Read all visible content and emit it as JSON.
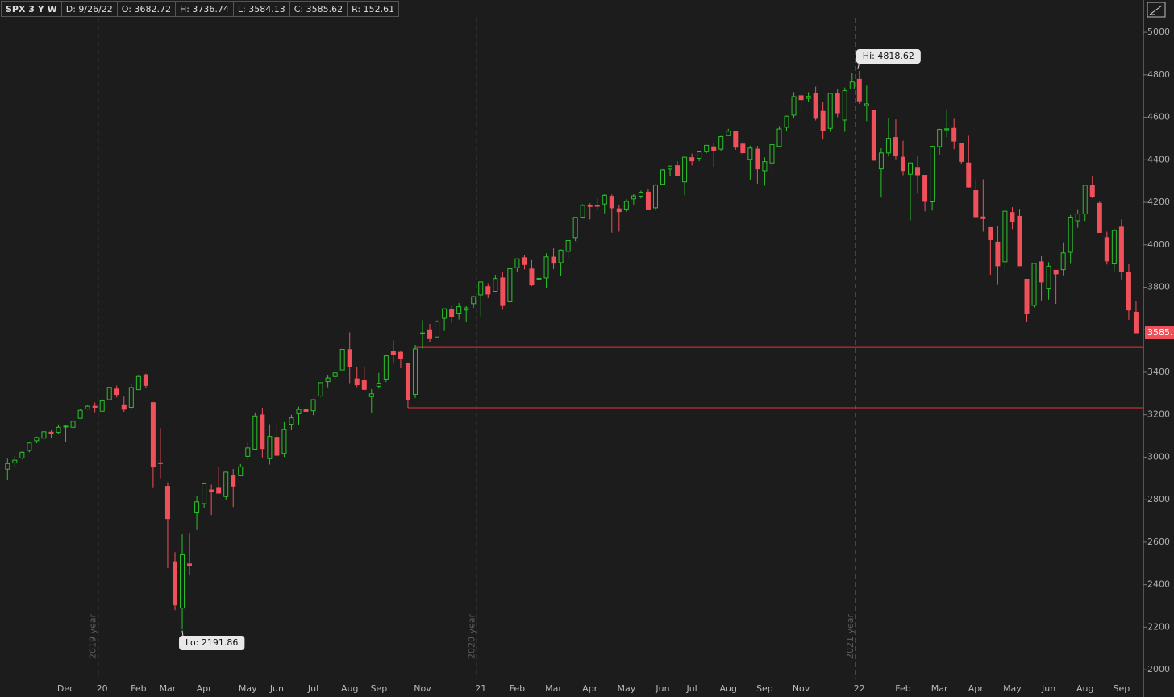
{
  "header": {
    "symbol": "SPX 3 Y W",
    "fields": [
      "D: 9/26/22",
      "O: 3682.72",
      "H: 3736.74",
      "L: 3584.13",
      "C: 3585.62",
      "R: 152.61"
    ]
  },
  "chart_data": {
    "type": "candlestick",
    "categories": [
      null,
      null,
      null,
      null,
      null,
      null,
      null,
      null,
      "Dec",
      null,
      null,
      null,
      null,
      "20",
      null,
      null,
      null,
      null,
      "Feb",
      null,
      null,
      null,
      "Mar",
      null,
      null,
      null,
      null,
      "Apr",
      null,
      null,
      null,
      null,
      null,
      "May",
      null,
      null,
      null,
      "Jun",
      null,
      null,
      null,
      null,
      "Jul",
      null,
      null,
      null,
      null,
      "Aug",
      null,
      null,
      null,
      "Sep",
      null,
      null,
      null,
      null,
      null,
      "Nov",
      null,
      null,
      null,
      null,
      null,
      null,
      null,
      "21",
      null,
      null,
      null,
      null,
      "Feb",
      null,
      null,
      null,
      null,
      "Mar",
      null,
      null,
      null,
      null,
      "Apr",
      null,
      null,
      null,
      null,
      "May",
      null,
      null,
      null,
      null,
      "Jun",
      null,
      null,
      null,
      "Jul",
      null,
      null,
      null,
      null,
      "Aug",
      null,
      null,
      null,
      null,
      "Sep",
      null,
      null,
      null,
      null,
      "Nov",
      null,
      null,
      null,
      null,
      null,
      null,
      null,
      "22",
      null,
      null,
      null,
      null,
      null,
      "Feb",
      null,
      null,
      null,
      null,
      "Mar",
      null,
      null,
      null,
      null,
      "Apr",
      null,
      null,
      null,
      null,
      "May",
      null,
      null,
      null,
      null,
      "Jun",
      null,
      null,
      null,
      null,
      "Aug",
      null,
      null,
      null,
      null,
      "Sep",
      null,
      null
    ],
    "open": [
      2944,
      2973,
      2996,
      3032,
      3078,
      3090,
      3118,
      3117,
      3144,
      3141,
      3183,
      3227,
      3240,
      3217,
      3271,
      3321,
      3247,
      3235,
      3318,
      3388,
      3257,
      2974,
      2863,
      2508,
      2290,
      2498,
      2738,
      2782,
      2846,
      2854,
      2815,
      2915,
      2913,
      3004,
      3038,
      3199,
      2993,
      3094,
      3018,
      3155,
      3205,
      3224,
      3219,
      3288,
      3356,
      3380,
      3411,
      3507,
      3369,
      3363,
      3285,
      3334,
      3368,
      3500,
      3494,
      3441,
      3296,
      3583,
      3600,
      3566,
      3654,
      3694,
      3675,
      3693,
      3723,
      3764,
      3803,
      3781,
      3844,
      3732,
      3892,
      3939,
      3886,
      3842,
      3844,
      3942,
      3916,
      3969,
      4034,
      4130,
      4185,
      4185,
      4192,
      4228,
      4169,
      4168,
      4216,
      4229,
      4248,
      4174,
      4285,
      4356,
      4372,
      4296,
      4410,
      4407,
      4438,
      4461,
      4450,
      4514,
      4535,
      4474,
      4402,
      4450,
      4348,
      4385,
      4463,
      4553,
      4610,
      4701,
      4689,
      4712,
      4628,
      4548,
      4710,
      4587,
      4733,
      4779,
      4655,
      4632,
      4357,
      4432,
      4505,
      4412,
      4332,
      4364,
      4327,
      4202,
      4462,
      4541,
      4548,
      4476,
      4385,
      4255,
      4131,
      4081,
      4013,
      3920,
      4152,
      4134,
      3838,
      3715,
      3920,
      3792,
      3880,
      3883,
      3965,
      4113,
      4145,
      4280,
      4195,
      4034,
      3910,
      4083,
      3871,
      3682.72
    ],
    "high": [
      2993,
      3008,
      3027,
      3067,
      3097,
      3121,
      3127,
      3154,
      3150,
      3183,
      3226,
      3247,
      3258,
      3276,
      3329,
      3337,
      3285,
      3347,
      3385,
      3393,
      3260,
      3137,
      2882,
      2553,
      2637,
      2641,
      2819,
      2880,
      2871,
      2955,
      2932,
      2945,
      2968,
      3068,
      3211,
      3233,
      3155,
      3155,
      3165,
      3200,
      3238,
      3280,
      3272,
      3352,
      3387,
      3399,
      3509,
      3588,
      3426,
      3428,
      3320,
      3397,
      3482,
      3550,
      3502,
      3441,
      3529,
      3645,
      3628,
      3644,
      3699,
      3712,
      3726,
      3711,
      3760,
      3827,
      3819,
      3859,
      3871,
      3887,
      3934,
      3951,
      3928,
      3915,
      3960,
      3983,
      3978,
      4020,
      4130,
      4191,
      4195,
      4219,
      4238,
      4237,
      4186,
      4214,
      4238,
      4255,
      4262,
      4286,
      4356,
      4372,
      4393,
      4415,
      4429,
      4440,
      4468,
      4482,
      4513,
      4546,
      4536,
      4486,
      4466,
      4465,
      4411,
      4475,
      4559,
      4608,
      4718,
      4714,
      4718,
      4744,
      4672,
      4713,
      4731,
      4740,
      4808,
      4818.62,
      4749,
      4632,
      4454,
      4595,
      4590,
      4490,
      4385,
      4416,
      4327,
      4466,
      4546,
      4637,
      4593,
      4478,
      4513,
      4308,
      4308,
      4082,
      4090,
      4159,
      4177,
      4169,
      3838,
      3913,
      3946,
      3918,
      3880,
      4012,
      4140,
      4167,
      4280,
      4325,
      4203,
      4062,
      4076,
      4119,
      3908,
      3736.74
    ],
    "low": [
      2892,
      2953,
      2991,
      3023,
      3066,
      3081,
      3091,
      3111,
      3070,
      3129,
      3183,
      3224,
      3212,
      3214,
      3268,
      3281,
      3214,
      3224,
      3316,
      3328,
      2855,
      2901,
      2478,
      2280,
      2191.86,
      2447,
      2657,
      2761,
      2728,
      2830,
      2798,
      2766,
      2913,
      2989,
      3035,
      2999,
      2966,
      3004,
      3001,
      3127,
      3154,
      3200,
      3198,
      3284,
      3329,
      3369,
      3411,
      3349,
      3330,
      3313,
      3209,
      3323,
      3354,
      3441,
      3419,
      3233,
      3279,
      3511,
      3543,
      3565,
      3594,
      3633,
      3648,
      3636,
      3703,
      3663,
      3749,
      3781,
      3694,
      3726,
      3874,
      3884,
      3805,
      3723,
      3795,
      3885,
      3853,
      3937,
      4017,
      4124,
      4119,
      4163,
      4148,
      4057,
      4062,
      4155,
      4188,
      4218,
      4164,
      4167,
      4282,
      4321,
      4322,
      4233,
      4373,
      4393,
      4431,
      4367,
      4441,
      4514,
      4447,
      4427,
      4306,
      4288,
      4278,
      4329,
      4459,
      4537,
      4595,
      4630,
      4672,
      4585,
      4495,
      4532,
      4600,
      4532,
      4733,
      4662,
      4582,
      4395,
      4222,
      4415,
      4402,
      4327,
      4115,
      4241,
      4157,
      4161,
      4424,
      4506,
      4450,
      4381,
      4269,
      4124,
      4062,
      3859,
      3811,
      3875,
      4074,
      3901,
      3637,
      3705,
      3738,
      3742,
      3722,
      3856,
      3910,
      4080,
      4112,
      4219,
      4057,
      3907,
      3876,
      3837,
      3647,
      3584.13
    ],
    "close": [
      2970,
      2986,
      3023,
      3067,
      3093,
      3120,
      3110,
      3141,
      3146,
      3169,
      3221,
      3240,
      3235,
      3265,
      3329,
      3295,
      3226,
      3328,
      3380,
      3338,
      2954,
      2972,
      2711,
      2305,
      2541,
      2489,
      2790,
      2875,
      2837,
      2831,
      2930,
      2864,
      2955,
      3044,
      3194,
      3041,
      3098,
      3009,
      3130,
      3185,
      3225,
      3216,
      3271,
      3351,
      3373,
      3397,
      3508,
      3427,
      3341,
      3319,
      3298,
      3348,
      3477,
      3483,
      3465,
      3270,
      3510,
      3585,
      3558,
      3638,
      3699,
      3663,
      3709,
      3703,
      3756,
      3825,
      3768,
      3841,
      3714,
      3887,
      3934,
      3907,
      3811,
      3842,
      3943,
      3913,
      3975,
      4020,
      4129,
      4185,
      4180,
      4181,
      4233,
      4174,
      4156,
      4204,
      4230,
      4247,
      4166,
      4281,
      4352,
      4370,
      4327,
      4412,
      4395,
      4437,
      4468,
      4442,
      4509,
      4535,
      4459,
      4433,
      4455,
      4357,
      4391,
      4471,
      4545,
      4605,
      4697,
      4683,
      4698,
      4595,
      4538,
      4712,
      4621,
      4725,
      4766,
      4677,
      4663,
      4398,
      4432,
      4501,
      4418,
      4349,
      4385,
      4329,
      4204,
      4463,
      4543,
      4546,
      4488,
      4392,
      4272,
      4132,
      4123,
      4024,
      3901,
      4158,
      4109,
      3901,
      3675,
      3912,
      3825,
      3899,
      3863,
      3962,
      4130,
      4145,
      4280,
      4228,
      4058,
      3924,
      4067,
      3873,
      3693,
      3585.62
    ],
    "up_color": "#2bc12b",
    "down_color": "#f0505a",
    "ylim": [
      1955,
      5152
    ],
    "yticks": [
      2000,
      2200,
      2400,
      2600,
      2800,
      3000,
      3200,
      3400,
      3600,
      3800,
      4000,
      4200,
      4400,
      4600,
      4800,
      5000
    ],
    "year_lines": [
      "2019 year",
      "2020 year",
      "2021 year"
    ],
    "hi_label": "Hi: 4818.62",
    "lo_label": "Lo: 2191.86",
    "last_label": "3585.",
    "levels": [
      3517,
      3233
    ],
    "level_color": "#e8323c"
  }
}
